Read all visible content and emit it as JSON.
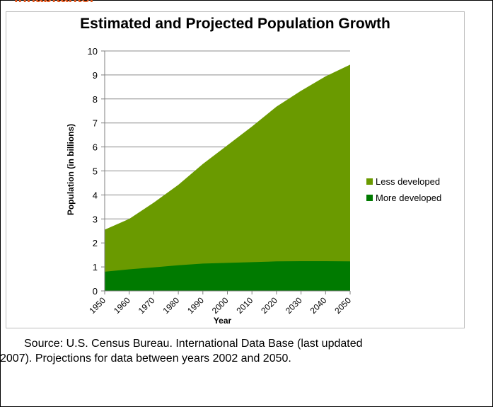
{
  "page": {
    "heading": "inhabitants.",
    "heading_color": "#e2561c",
    "source_line1": "Source: U.S. Census Bureau. International Data Base (last updated",
    "source_line2": "2007). Projections for data between years 2002 and 2050."
  },
  "chart_data": {
    "type": "area",
    "stacked": true,
    "title": "Estimated and Projected Population Growth",
    "xlabel": "Year",
    "ylabel": "Population (in billions)",
    "ylim": [
      0,
      10
    ],
    "xlim": [
      1950,
      2050
    ],
    "yticks": [
      "0",
      "1",
      "2",
      "3",
      "4",
      "5",
      "6",
      "7",
      "8",
      "9",
      "10"
    ],
    "xticks": [
      "1950",
      "1960",
      "1970",
      "1980",
      "1990",
      "2000",
      "2010",
      "2020",
      "2030",
      "2040",
      "2050"
    ],
    "grid": "horizontal",
    "legend_position": "right",
    "x": [
      1950,
      1960,
      1970,
      1980,
      1990,
      2000,
      2010,
      2020,
      2030,
      2040,
      2050
    ],
    "series": [
      {
        "name": "Less developed",
        "color": "#6a9a00",
        "values": [
          1.75,
          2.1,
          2.7,
          3.35,
          4.15,
          4.9,
          5.65,
          6.45,
          7.1,
          7.7,
          8.2
        ]
      },
      {
        "name": "More developed",
        "color": "#007a00",
        "values": [
          0.8,
          0.9,
          0.98,
          1.07,
          1.14,
          1.17,
          1.2,
          1.23,
          1.24,
          1.24,
          1.23
        ]
      }
    ]
  }
}
